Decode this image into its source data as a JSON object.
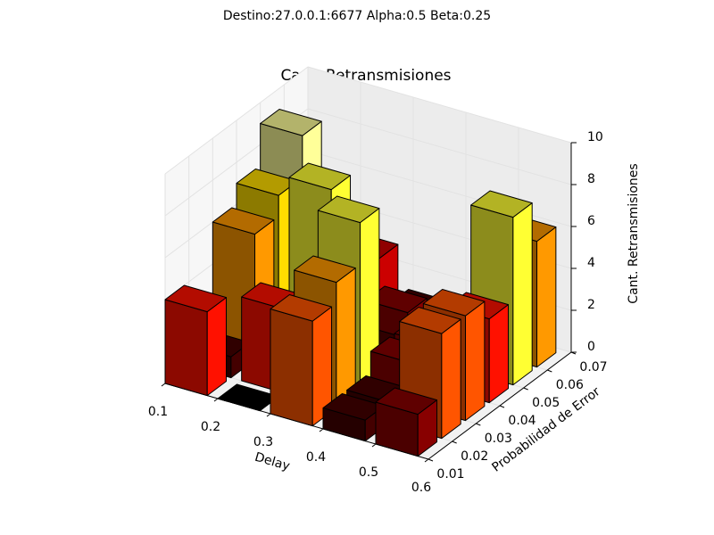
{
  "chart_data": {
    "type": "bar3d",
    "suptitle": "Destino:27.0.0.1:6677    Alpha:0.5    Beta:0.25",
    "title": "Cant. Retransmisiones",
    "x_label": "Delay",
    "y_label": "Probabilidad de Error",
    "z_label": "Cant. Retransmisiones",
    "x": [
      0.1,
      0.2,
      0.3,
      0.4,
      0.5
    ],
    "y": [
      0.01,
      0.02,
      0.03,
      0.04,
      0.05,
      0.06
    ],
    "values": [
      [
        4,
        0,
        5,
        1,
        2
      ],
      [
        1,
        4,
        6,
        1,
        5
      ],
      [
        6,
        2,
        8,
        2,
        5
      ],
      [
        7,
        8,
        1,
        2,
        4
      ],
      [
        9,
        1,
        2,
        1,
        8
      ],
      [
        1,
        3,
        1,
        1,
        6
      ]
    ],
    "xlim": [
      0.1,
      0.6
    ],
    "ylim": [
      0.01,
      0.07
    ],
    "zlim": [
      0,
      10
    ],
    "xticks": [
      0.1,
      0.2,
      0.3,
      0.4,
      0.5,
      0.6
    ],
    "yticks": [
      0.01,
      0.02,
      0.03,
      0.04,
      0.05,
      0.06,
      0.07
    ],
    "zticks": [
      0,
      2,
      4,
      6,
      8,
      10
    ],
    "colormap": "hot",
    "grid": true
  }
}
